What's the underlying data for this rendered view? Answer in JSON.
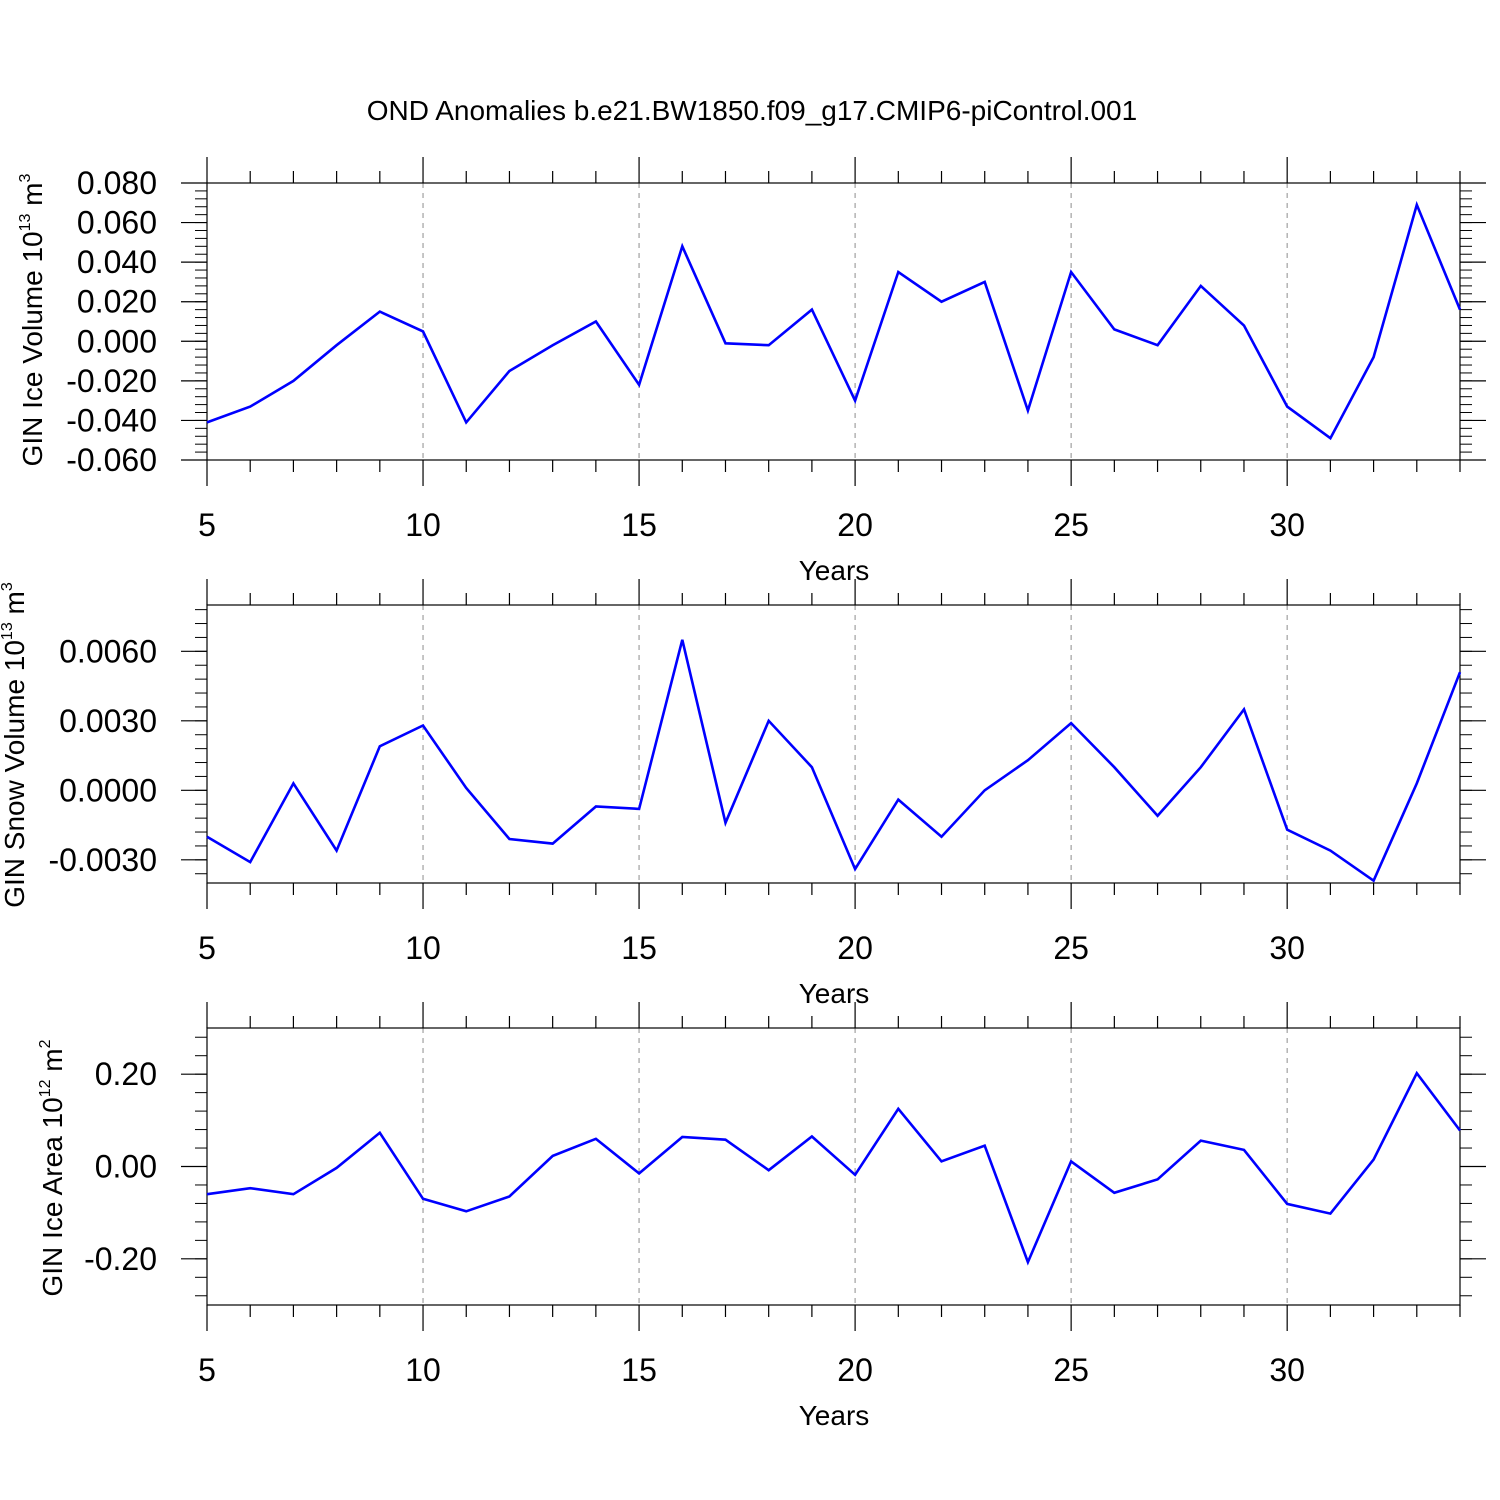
{
  "title": "OND Anomalies b.e21.BW1850.f09_g17.CMIP6-piControl.001",
  "colors": {
    "line": "#0000ff",
    "grid": "#a0a0a0",
    "axis": "#000000"
  },
  "chart_data": [
    {
      "type": "line",
      "ylabel": {
        "main": "GIN Ice Volume 10",
        "sup": "13",
        "unit": " m",
        "unit_sup": "3"
      },
      "xlabel": "Years",
      "xlim": [
        5,
        34
      ],
      "ylim": [
        -0.06,
        0.08
      ],
      "xticks": [
        "5",
        "10",
        "15",
        "20",
        "25",
        "30"
      ],
      "yticks": [
        "0.080",
        "0.060",
        "0.040",
        "0.020",
        "0.000",
        "-0.020",
        "-0.040",
        "-0.060"
      ],
      "grid": "vertical dashed at major x ticks",
      "x": [
        5,
        6,
        7,
        8,
        9,
        10,
        11,
        12,
        13,
        14,
        15,
        16,
        17,
        18,
        19,
        20,
        21,
        22,
        23,
        24,
        25,
        26,
        27,
        28,
        29,
        30,
        31,
        32,
        33,
        34
      ],
      "values": [
        -0.041,
        -0.033,
        -0.02,
        -0.002,
        0.015,
        0.005,
        -0.041,
        -0.015,
        -0.002,
        0.01,
        -0.022,
        0.048,
        -0.001,
        -0.002,
        0.016,
        -0.03,
        0.035,
        0.02,
        0.03,
        -0.035,
        0.035,
        0.006,
        -0.002,
        0.028,
        0.008,
        -0.033,
        -0.049,
        -0.008,
        0.069,
        0.016
      ]
    },
    {
      "type": "line",
      "ylabel": {
        "main": "GIN Snow Volume 10",
        "sup": "13",
        "unit": " m",
        "unit_sup": "3"
      },
      "xlabel": "Years",
      "xlim": [
        5,
        34
      ],
      "ylim": [
        -0.004,
        0.008
      ],
      "xticks": [
        "5",
        "10",
        "15",
        "20",
        "25",
        "30"
      ],
      "yticks": [
        "0.0060",
        "0.0030",
        "0.0000",
        "-0.0030"
      ],
      "grid": "vertical dashed at major x ticks",
      "x": [
        5,
        6,
        7,
        8,
        9,
        10,
        11,
        12,
        13,
        14,
        15,
        16,
        17,
        18,
        19,
        20,
        21,
        22,
        23,
        24,
        25,
        26,
        27,
        28,
        29,
        30,
        31,
        32,
        33,
        34
      ],
      "values": [
        -0.002,
        -0.0031,
        0.0003,
        -0.0026,
        0.0019,
        0.0028,
        0.0001,
        -0.0021,
        -0.0023,
        -0.0007,
        -0.0008,
        0.0065,
        -0.0014,
        0.003,
        0.001,
        -0.0034,
        -0.0004,
        -0.002,
        0.0,
        0.0013,
        0.0029,
        0.001,
        -0.0011,
        0.001,
        0.0035,
        -0.0017,
        -0.0026,
        -0.0039,
        0.0003,
        0.0051
      ]
    },
    {
      "type": "line",
      "ylabel": {
        "main": "GIN Ice Area 10",
        "sup": "12",
        "unit": " m",
        "unit_sup": "2"
      },
      "xlabel": "Years",
      "xlim": [
        5,
        34
      ],
      "ylim": [
        -0.3,
        0.3
      ],
      "xticks": [
        "5",
        "10",
        "15",
        "20",
        "25",
        "30"
      ],
      "yticks": [
        "0.20",
        "0.00",
        "-0.20"
      ],
      "grid": "vertical dashed at major x ticks",
      "x": [
        5,
        6,
        7,
        8,
        9,
        10,
        11,
        12,
        13,
        14,
        15,
        16,
        17,
        18,
        19,
        20,
        21,
        22,
        23,
        24,
        25,
        26,
        27,
        28,
        29,
        30,
        31,
        32,
        33,
        34
      ],
      "values": [
        -0.06,
        -0.047,
        -0.06,
        -0.003,
        0.073,
        -0.07,
        -0.097,
        -0.065,
        0.023,
        0.06,
        -0.015,
        0.064,
        0.058,
        -0.008,
        0.065,
        -0.018,
        0.125,
        0.011,
        0.045,
        -0.207,
        0.011,
        -0.057,
        -0.028,
        0.056,
        0.036,
        -0.081,
        -0.102,
        0.015,
        0.202,
        0.078
      ]
    }
  ]
}
